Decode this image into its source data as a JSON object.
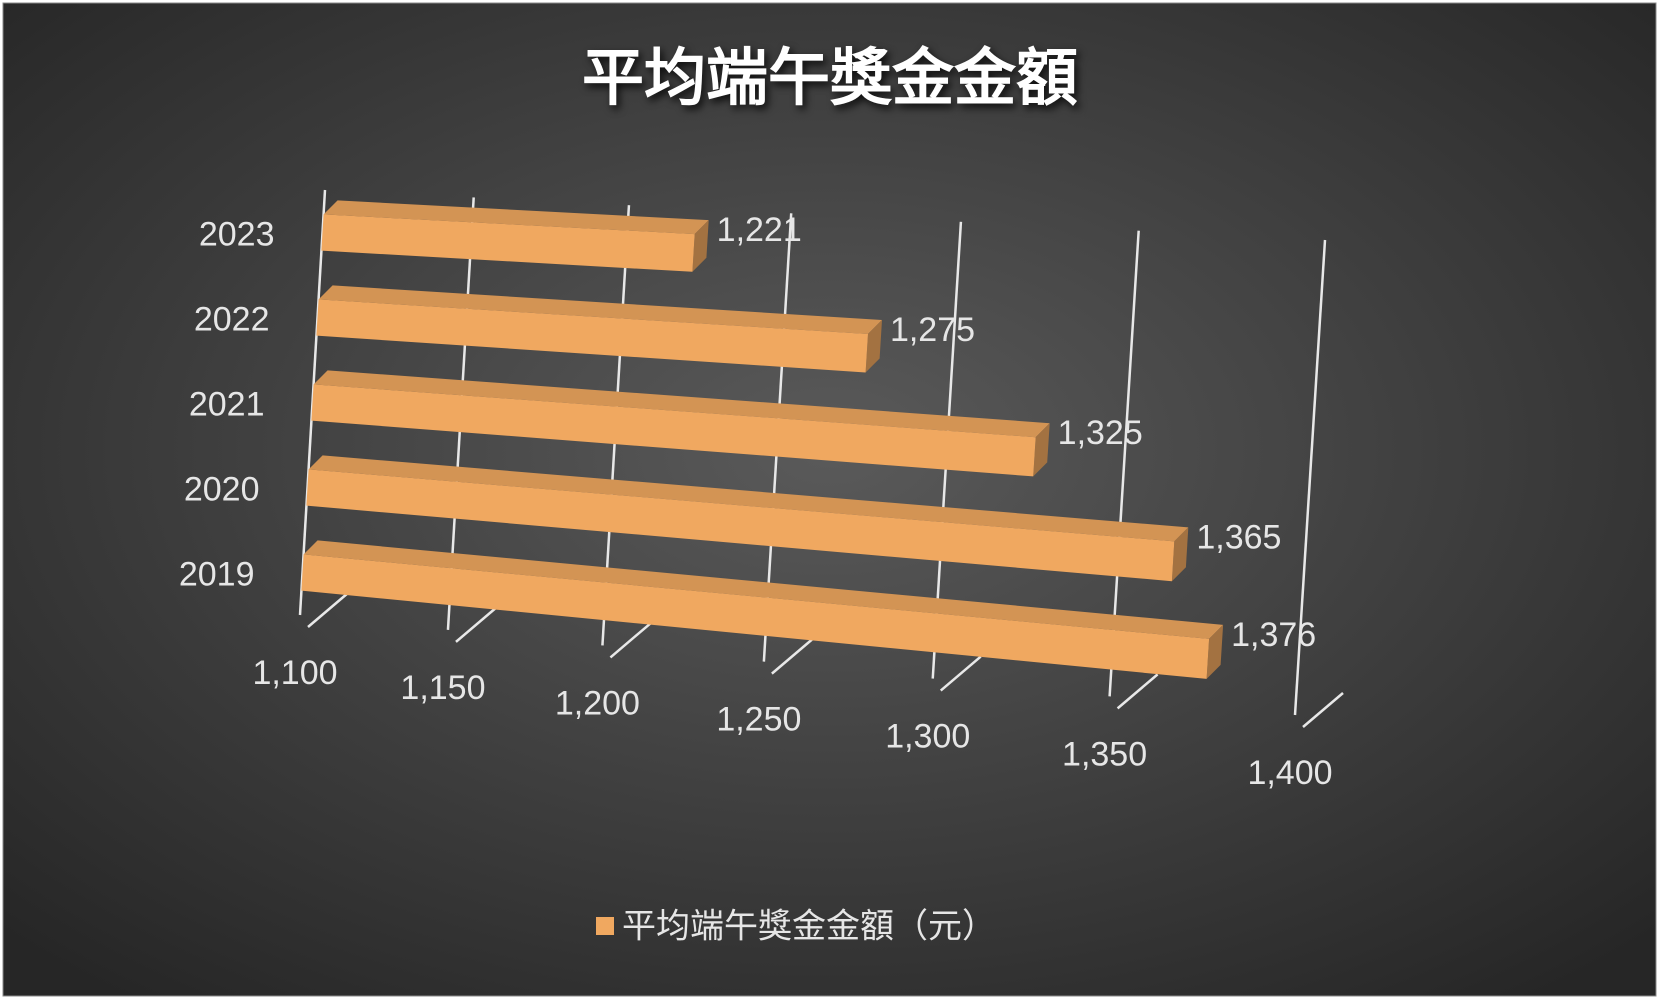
{
  "chart_data": {
    "type": "bar3d",
    "orientation": "horizontal",
    "title": "平均端午獎金金額",
    "categories": [
      "2019",
      "2020",
      "2021",
      "2022",
      "2023"
    ],
    "series": [
      {
        "name": "平均端午獎金金額（元）",
        "color": "#f0a860",
        "values": [
          1376,
          1365,
          1325,
          1275,
          1221
        ],
        "value_labels": [
          "1,376",
          "1,365",
          "1,325",
          "1,275",
          "1,221"
        ]
      }
    ],
    "xlim": [
      1100,
      1400
    ],
    "xticks": [
      {
        "value": 1100,
        "label": "1,100"
      },
      {
        "value": 1150,
        "label": "1,150"
      },
      {
        "value": 1200,
        "label": "1,200"
      },
      {
        "value": 1250,
        "label": "1,250"
      },
      {
        "value": 1300,
        "label": "1,300"
      },
      {
        "value": 1350,
        "label": "1,350"
      },
      {
        "value": 1400,
        "label": "1,400"
      }
    ],
    "grid": true,
    "legend": "bottom"
  }
}
